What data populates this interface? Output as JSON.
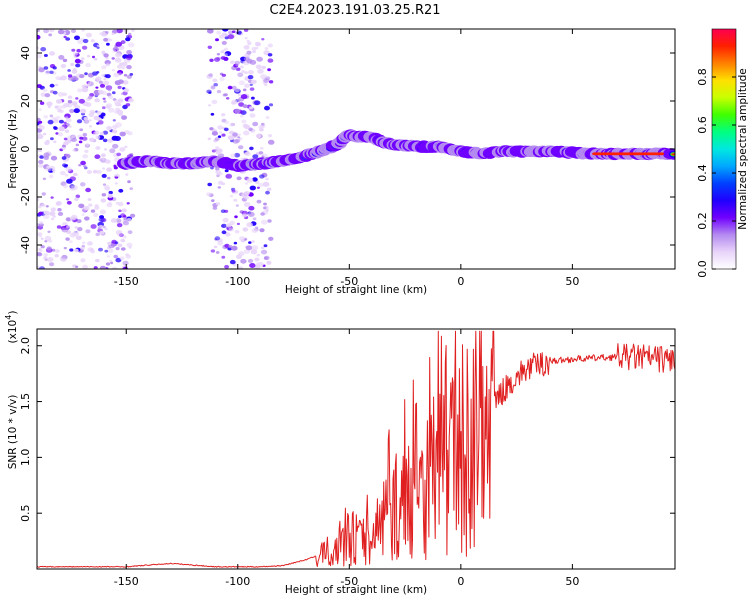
{
  "figure_title": "C2E4.2023.191.03.25.R21",
  "chart_data": [
    {
      "type": "heatmap",
      "xlabel": "Height of straight line (km)",
      "ylabel": "Frequency (Hz)",
      "xlim": [
        -190,
        96
      ],
      "ylim": [
        -50,
        50
      ],
      "xticks": [
        -150,
        -100,
        -50,
        0,
        50
      ],
      "yticks": [
        -40,
        -20,
        0,
        20,
        40
      ],
      "colorbar": {
        "label": "Normalized spectral amplitude",
        "range": [
          0,
          1
        ],
        "ticks": [
          "0.0",
          "0.2",
          "0.4",
          "0.6",
          "0.8"
        ],
        "tick_values": [
          0.0,
          0.2,
          0.4,
          0.6,
          0.8
        ],
        "colors": [
          "#ffffff",
          "#e8d4fa",
          "#b48af0",
          "#7000ff",
          "#2000ff",
          "#0040ff",
          "#00a8ff",
          "#00e8e0",
          "#00ff80",
          "#40ff00",
          "#c8ff00",
          "#ffe000",
          "#ff8000",
          "#ff2000",
          "#ff0050"
        ]
      },
      "ridge": {
        "x": [
          -150,
          -140,
          -130,
          -120,
          -110,
          -100,
          -88,
          -80,
          -70,
          -60,
          -55,
          -50,
          -45,
          -40,
          -35,
          -30,
          -20,
          -10,
          0,
          10,
          20,
          40,
          60,
          80,
          95
        ],
        "y": [
          -6,
          -5,
          -6,
          -6,
          -5,
          -7,
          -6,
          -5,
          -3,
          0,
          2,
          6,
          5,
          5,
          3,
          2,
          1,
          1,
          -1,
          -2,
          -1,
          -1,
          -2,
          -2,
          -2
        ]
      },
      "noise_regions": [
        [
          -190,
          -147
        ],
        [
          -113,
          -85
        ]
      ]
    },
    {
      "type": "line",
      "xlabel": "Height of straight line (km)",
      "ylabel": "SNR (10 * v/v)",
      "y_multiplier": "(x10^4)",
      "xlim": [
        -190,
        96
      ],
      "ylim": [
        0,
        2.15
      ],
      "xticks": [
        -150,
        -100,
        -50,
        0,
        50
      ],
      "yticks": [
        0.5,
        1.0,
        1.5,
        2.0
      ],
      "ytick_labels": [
        "0.5",
        "1.0",
        "1.5",
        "2.0"
      ],
      "color": "#e02020",
      "trend": {
        "x": [
          -190,
          -150,
          -130,
          -110,
          -90,
          -80,
          -70,
          -60,
          -55,
          -50,
          -45,
          -40,
          -35,
          -30,
          -25,
          -20,
          -15,
          -10,
          -5,
          0,
          5,
          10,
          15,
          20,
          25,
          30,
          40,
          50,
          60,
          70,
          80,
          90,
          96
        ],
        "y": [
          0.02,
          0.02,
          0.05,
          0.02,
          0.02,
          0.03,
          0.08,
          0.15,
          0.22,
          0.3,
          0.25,
          0.28,
          0.45,
          0.55,
          0.6,
          0.7,
          0.8,
          0.95,
          1.0,
          1.05,
          1.15,
          1.3,
          1.5,
          1.62,
          1.72,
          1.8,
          1.86,
          1.88,
          1.89,
          1.9,
          1.9,
          1.88,
          1.88
        ]
      }
    }
  ]
}
